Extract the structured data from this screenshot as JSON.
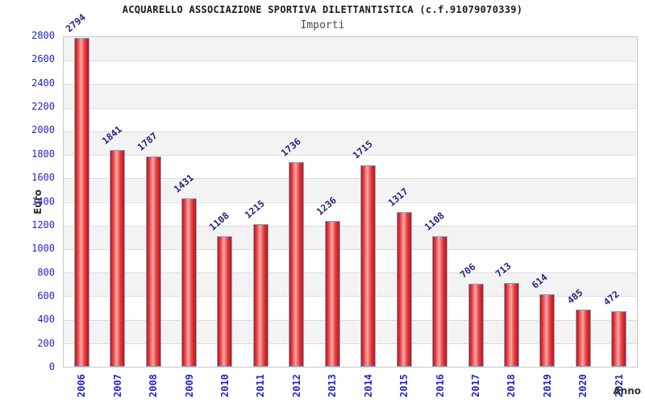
{
  "chart_data": {
    "type": "bar",
    "title": "ACQUARELLO ASSOCIAZIONE SPORTIVA DILETTANTISTICA (c.f.91079070339)",
    "subtitle": "Importi",
    "xlabel": "Anno",
    "ylabel": "Euro",
    "categories": [
      "2006",
      "2007",
      "2008",
      "2009",
      "2010",
      "2011",
      "2012",
      "2013",
      "2014",
      "2015",
      "2016",
      "2017",
      "2018",
      "2019",
      "2020",
      "2021"
    ],
    "values": [
      2794,
      1841,
      1787,
      1431,
      1108,
      1215,
      1736,
      1236,
      1715,
      1317,
      1108,
      706,
      713,
      614,
      485,
      472
    ],
    "ylim": [
      0,
      2800
    ],
    "ytick_step": 200,
    "grid": "horizontal",
    "band_fill": "alternating-rows-per-tick-interval",
    "legend_position": "none",
    "value_labels": "above-bars-rotated-45",
    "x_tick_rotation": 90
  },
  "colors": {
    "background": "#ffffff",
    "title": "#1a1a1a",
    "subtitle": "#4a4a4a",
    "axis-title": "#333333",
    "tick-label": "#2424cc",
    "value-label": "#26267f",
    "bar-edge": "#c31111",
    "bar-mid": "#e43b3b",
    "bar-light": "#f6a8a8",
    "bar-border": "#74aedd",
    "band": "#f3f3f3",
    "grid-line": "#dcdcdc",
    "plot-border": "#c9c9c9"
  }
}
